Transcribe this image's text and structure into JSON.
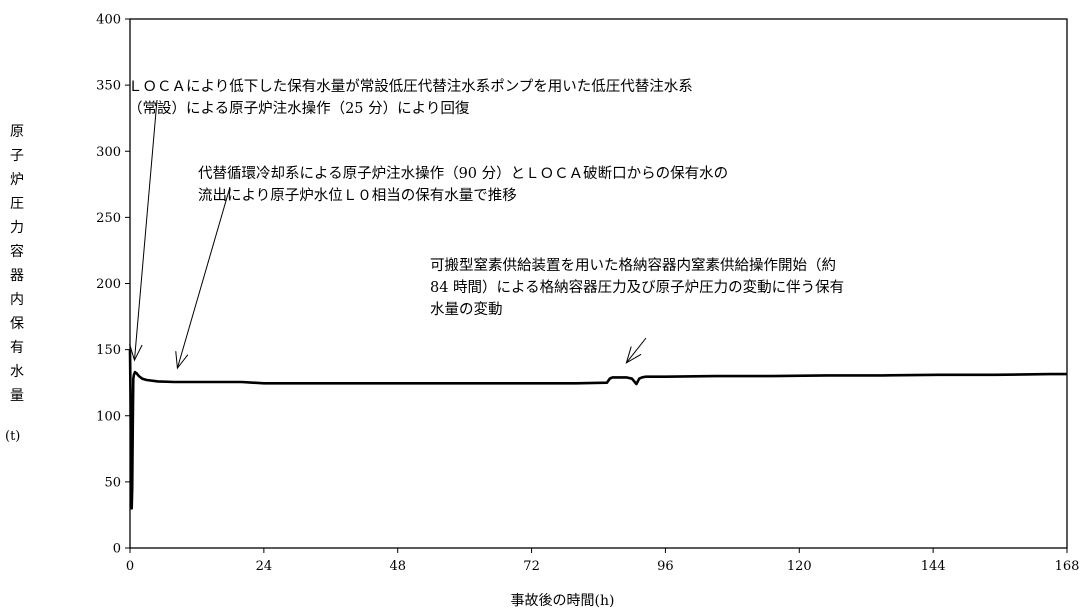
{
  "chart_data": {
    "type": "line",
    "title": "",
    "xlabel": "事故後の時間(h)",
    "ylabel": "原子炉圧力容器内保有水量",
    "yunit": "(t)",
    "xlim": [
      0,
      168
    ],
    "ylim": [
      0,
      400
    ],
    "xticks": [
      0,
      24,
      48,
      72,
      96,
      120,
      144,
      168
    ],
    "yticks": [
      0,
      50,
      100,
      150,
      200,
      250,
      300,
      350,
      400
    ],
    "grid": false,
    "series": [
      {
        "color": "#000000",
        "x": [
          0,
          0.1,
          0.2,
          0.3,
          0.4,
          0.5,
          0.6,
          0.7,
          0.9,
          1.2,
          1.6,
          2.2,
          3,
          5,
          8,
          12,
          20,
          24,
          30,
          40,
          50,
          60,
          70,
          80,
          85.5,
          86.0,
          86.5,
          89,
          90,
          90.8,
          91.3,
          91.8,
          92.5,
          96,
          105,
          115,
          125,
          135,
          145,
          155,
          165,
          168
        ],
        "y": [
          150,
          110,
          55,
          30,
          45,
          95,
          128,
          131,
          133,
          132,
          130,
          128,
          127,
          126,
          125.5,
          125.5,
          125.5,
          124.5,
          124.5,
          124.5,
          124.5,
          124.5,
          124.5,
          124.5,
          125,
          128,
          129,
          129,
          128,
          124,
          128,
          129,
          129.5,
          129.5,
          130,
          130,
          130.5,
          130.5,
          131,
          131,
          131.5,
          131.5
        ]
      }
    ]
  },
  "annotations": [
    {
      "lines": [
        "ＬＯＣＡにより低下した保有水量が常設低圧代替注水系ポンプを用いた低圧代替注水系",
        "（常設）による原子炉注水操作（25 分）により回復"
      ],
      "arrow_from": [
        157,
        100
      ],
      "arrow_to": [
        0.8,
        142
      ]
    },
    {
      "lines": [
        "代替循環冷却系による原子炉注水操作（90 分）とＬＯＣＡ破断口からの保有水の",
        "流出により原子炉水位Ｌ０相当の保有水量で推移"
      ],
      "arrow_from": [
        230,
        187
      ],
      "arrow_to": [
        8.5,
        136
      ]
    },
    {
      "lines": [
        "可搬型窒素供給装置を用いた格納容器内窒素供給操作開始（約",
        "84 時間）による格納容器圧力及び原子炉圧力の変動に伴う保有",
        "水量の変動"
      ],
      "arrow_from": [
        646,
        338
      ],
      "arrow_to": [
        89,
        140
      ]
    }
  ]
}
